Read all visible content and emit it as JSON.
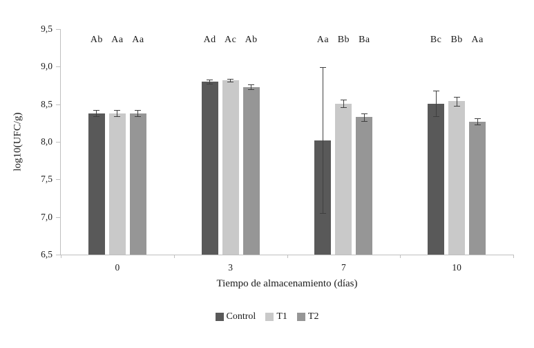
{
  "chart_data": {
    "type": "bar",
    "title": "",
    "xlabel": "Tiempo de almacenamiento (días)",
    "ylabel": "log10(UFC/g)",
    "ylim": [
      6.5,
      9.5
    ],
    "ytick_step": 0.5,
    "ytick_labels": [
      "6,5",
      "7,0",
      "7,5",
      "8,0",
      "8,5",
      "9,0",
      "9,5"
    ],
    "categories": [
      "0",
      "3",
      "7",
      "10"
    ],
    "series": [
      {
        "name": "Control",
        "color": "#595959",
        "values": [
          8.38,
          8.8,
          8.02,
          8.51
        ],
        "errors": [
          0.04,
          0.03,
          0.97,
          0.17
        ],
        "sig_labels": [
          "Ab",
          "Ad",
          "Aa",
          "Bc"
        ]
      },
      {
        "name": "T1",
        "color": "#c9c9c9",
        "values": [
          8.38,
          8.82,
          8.51,
          8.54
        ],
        "errors": [
          0.04,
          0.02,
          0.05,
          0.06
        ],
        "sig_labels": [
          "Aa",
          "Ac",
          "Bb",
          "Bb"
        ]
      },
      {
        "name": "T2",
        "color": "#969696",
        "values": [
          8.38,
          8.73,
          8.33,
          8.27
        ],
        "errors": [
          0.04,
          0.03,
          0.05,
          0.04
        ],
        "sig_labels": [
          "Aa",
          "Ab",
          "Ba",
          "Aa"
        ]
      }
    ],
    "legend": [
      "Control",
      "T1",
      "T2"
    ],
    "legend_position": "bottom",
    "grid": false
  }
}
